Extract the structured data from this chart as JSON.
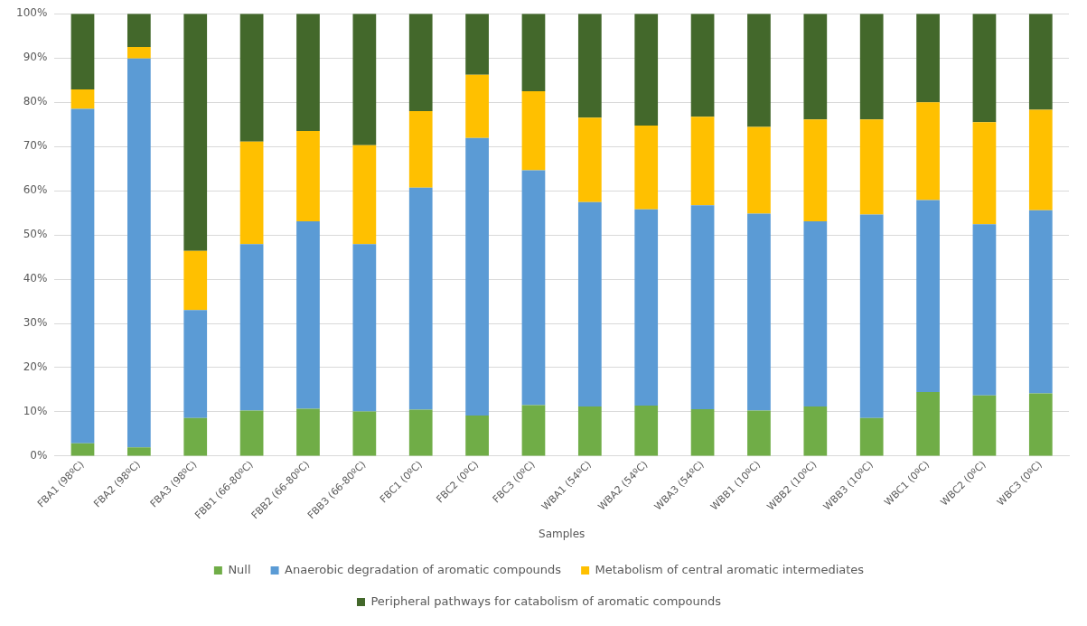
{
  "chart_data": {
    "type": "bar",
    "stacked": true,
    "xlabel": "Samples",
    "categories": [
      "FBA1 (98ºC)",
      "FBA2 (98ºC)",
      "FBA3 (98ºC)",
      "FBB1 (66-80ºC)",
      "FBB2 (66-80ºC)",
      "FBB3 (66-80ºC)",
      "FBC1 (0ºC)",
      "FBC2 (0ºC)",
      "FBC3 (0ºC)",
      "WBA1 (54ºC)",
      "WBA2 (54ºC)",
      "WBA3 (54ºC)",
      "WBB1 (10ºC)",
      "WBB2 (10ºC)",
      "WBB3 (10ºC)",
      "WBC1 (0ºC)",
      "WBC2 (0ºC)",
      "WBC3 (0ºC)"
    ],
    "series": [
      {
        "name": "Null",
        "color": "#70ad47",
        "values": [
          2.9,
          2.0,
          8.6,
          10.3,
          10.7,
          10.1,
          10.5,
          9.2,
          11.5,
          11.2,
          11.4,
          10.6,
          10.3,
          11.2,
          8.6,
          14.5,
          13.7,
          14.2
        ]
      },
      {
        "name": "Anaerobic degradation of aromatic compounds",
        "color": "#5b9bd5",
        "values": [
          75.6,
          87.9,
          24.4,
          37.6,
          42.4,
          37.8,
          50.2,
          62.7,
          53.1,
          46.2,
          44.4,
          46.1,
          44.5,
          41.9,
          46.0,
          43.4,
          38.7,
          41.4
        ]
      },
      {
        "name": "Metabolism of central aromatic intermediates",
        "color": "#ffc000",
        "values": [
          4.4,
          2.6,
          13.4,
          23.2,
          20.4,
          22.4,
          17.3,
          14.3,
          17.9,
          19.1,
          18.9,
          20.0,
          19.6,
          23.0,
          21.5,
          22.1,
          23.1,
          22.7
        ]
      },
      {
        "name": "Peripheral pathways for catabolism of aromatic compounds",
        "color": "#43682b",
        "values": [
          17.1,
          7.5,
          53.6,
          28.9,
          26.5,
          29.7,
          22.0,
          13.8,
          17.5,
          23.5,
          25.3,
          23.3,
          25.6,
          23.9,
          23.9,
          20.0,
          24.5,
          21.7
        ]
      }
    ],
    "ylim": [
      0,
      100
    ],
    "yticks": [
      {
        "value": 0,
        "label": "0%"
      },
      {
        "value": 10,
        "label": "10%"
      },
      {
        "value": 20,
        "label": "20%"
      },
      {
        "value": 30,
        "label": "30%"
      },
      {
        "value": 40,
        "label": "40%"
      },
      {
        "value": 50,
        "label": "50%"
      },
      {
        "value": 60,
        "label": "60%"
      },
      {
        "value": 70,
        "label": "70%"
      },
      {
        "value": 80,
        "label": "80%"
      },
      {
        "value": 90,
        "label": "90%"
      },
      {
        "value": 100,
        "label": "100%"
      }
    ],
    "grid": "y",
    "legend": "bottom"
  }
}
